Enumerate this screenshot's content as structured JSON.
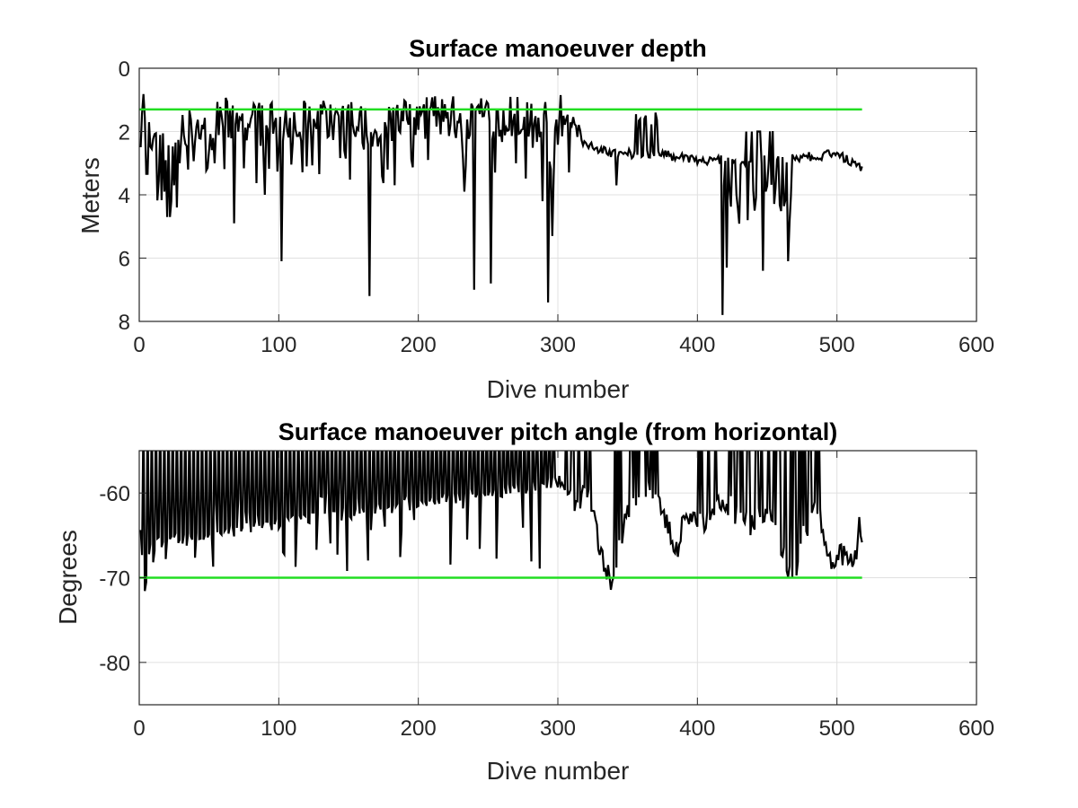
{
  "chart_data": [
    {
      "type": "line",
      "title": "Surface manoeuver depth",
      "xlabel": "Dive number",
      "ylabel": "Meters",
      "xlim": [
        0,
        600
      ],
      "ylim": [
        0,
        8
      ],
      "y_reversed": true,
      "grid": true,
      "x_ticks": [
        0,
        100,
        200,
        300,
        400,
        500,
        600
      ],
      "y_ticks": [
        0,
        2,
        4,
        6,
        8
      ],
      "reference_line": {
        "y": 1.3,
        "x": [
          0,
          518
        ],
        "color": "#22dd22"
      },
      "line_color": "#000000",
      "dives": 518,
      "typical_level": [
        {
          "x": 0,
          "y": 0.8
        },
        {
          "x": 5,
          "y": 1.4
        },
        {
          "x": 15,
          "y": 2.2
        },
        {
          "x": 30,
          "y": 1.7
        },
        {
          "x": 60,
          "y": 1.4
        },
        {
          "x": 100,
          "y": 1.5
        },
        {
          "x": 150,
          "y": 1.4
        },
        {
          "x": 170,
          "y": 1.9
        },
        {
          "x": 190,
          "y": 1.5
        },
        {
          "x": 220,
          "y": 1.3
        },
        {
          "x": 260,
          "y": 1.4
        },
        {
          "x": 300,
          "y": 1.3
        },
        {
          "x": 312,
          "y": 1.4
        },
        {
          "x": 318,
          "y": 2.4
        },
        {
          "x": 340,
          "y": 2.7
        },
        {
          "x": 370,
          "y": 2.7
        },
        {
          "x": 400,
          "y": 2.9
        },
        {
          "x": 450,
          "y": 2.9
        },
        {
          "x": 480,
          "y": 2.8
        },
        {
          "x": 500,
          "y": 2.7
        },
        {
          "x": 518,
          "y": 3.2
        }
      ],
      "spikes": [
        [
          18,
          3.9
        ],
        [
          20,
          4.7
        ],
        [
          22,
          4.7
        ],
        [
          25,
          3.7
        ],
        [
          27,
          4.4
        ],
        [
          29,
          3.0
        ],
        [
          35,
          3.2
        ],
        [
          54,
          3.0
        ],
        [
          68,
          4.9
        ],
        [
          90,
          4.0
        ],
        [
          102,
          6.1
        ],
        [
          120,
          3.1
        ],
        [
          147,
          2.6
        ],
        [
          165,
          7.2
        ],
        [
          178,
          3.2
        ],
        [
          183,
          3.7
        ],
        [
          207,
          2.9
        ],
        [
          233,
          3.9
        ],
        [
          240,
          7.0
        ],
        [
          252,
          6.8
        ],
        [
          270,
          3.0
        ],
        [
          289,
          4.2
        ],
        [
          293,
          7.4
        ],
        [
          296,
          5.3
        ],
        [
          342,
          3.7
        ],
        [
          384,
          2.9
        ],
        [
          418,
          7.8
        ],
        [
          421,
          6.3
        ],
        [
          428,
          4.0
        ],
        [
          436,
          4.8
        ],
        [
          441,
          4.5
        ],
        [
          447,
          6.4
        ],
        [
          456,
          3.8
        ],
        [
          465,
          6.1
        ]
      ]
    },
    {
      "type": "line",
      "title": "Surface manoeuver pitch angle (from horizontal)",
      "xlabel": "Dive number",
      "ylabel": "Degrees",
      "xlim": [
        0,
        600
      ],
      "ylim": [
        -85,
        -55
      ],
      "grid": true,
      "x_ticks": [
        0,
        100,
        200,
        300,
        400,
        500,
        600
      ],
      "y_ticks": [
        -60,
        -70,
        -80
      ],
      "reference_line": {
        "y": -70,
        "x": [
          0,
          518
        ],
        "color": "#22dd22"
      },
      "line_color": "#000000",
      "dives": 518,
      "typical_level": [
        {
          "x": 0,
          "y": -62
        },
        {
          "x": 4,
          "y": -70.5
        },
        {
          "x": 8,
          "y": -69
        },
        {
          "x": 12,
          "y": -65
        },
        {
          "x": 300,
          "y": -58
        },
        {
          "x": 310,
          "y": -61
        },
        {
          "x": 320,
          "y": -60
        },
        {
          "x": 326,
          "y": -63
        },
        {
          "x": 332,
          "y": -68
        },
        {
          "x": 338,
          "y": -70.2
        },
        {
          "x": 342,
          "y": -68
        },
        {
          "x": 350,
          "y": -62
        },
        {
          "x": 360,
          "y": -59
        },
        {
          "x": 372,
          "y": -61
        },
        {
          "x": 378,
          "y": -64
        },
        {
          "x": 385,
          "y": -67
        },
        {
          "x": 392,
          "y": -62
        },
        {
          "x": 398,
          "y": -63
        },
        {
          "x": 405,
          "y": -64
        },
        {
          "x": 412,
          "y": -62
        },
        {
          "x": 420,
          "y": -61
        },
        {
          "x": 430,
          "y": -63
        },
        {
          "x": 440,
          "y": -64
        },
        {
          "x": 450,
          "y": -62
        },
        {
          "x": 458,
          "y": -65
        },
        {
          "x": 466,
          "y": -69
        },
        {
          "x": 470,
          "y": -71.3
        },
        {
          "x": 474,
          "y": -66
        },
        {
          "x": 480,
          "y": -64
        },
        {
          "x": 486,
          "y": -61
        },
        {
          "x": 492,
          "y": -67
        },
        {
          "x": 500,
          "y": -68
        },
        {
          "x": 506,
          "y": -67
        },
        {
          "x": 512,
          "y": -69.5
        },
        {
          "x": 516,
          "y": -64
        },
        {
          "x": 518,
          "y": -65
        }
      ]
    }
  ]
}
